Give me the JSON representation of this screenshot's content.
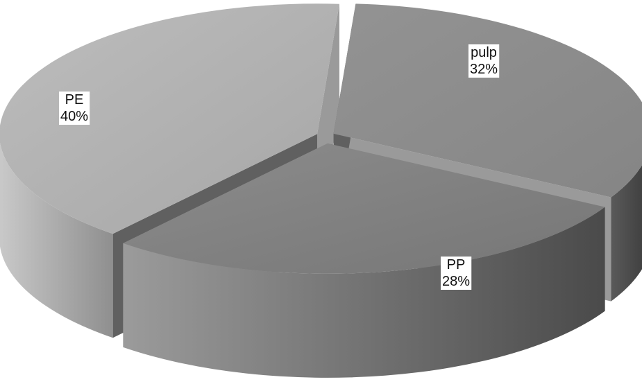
{
  "chart_data": {
    "type": "pie",
    "style": "3d-exploded",
    "title": "",
    "slices": [
      {
        "label": "pulp",
        "value": 32,
        "value_label": "32%",
        "color": "#8d8d8d"
      },
      {
        "label": "PP",
        "value": 28,
        "value_label": "28%",
        "color": "#7d7d7d"
      },
      {
        "label": "PE",
        "value": 40,
        "value_label": "40%",
        "color": "#b4b4b4"
      }
    ]
  }
}
